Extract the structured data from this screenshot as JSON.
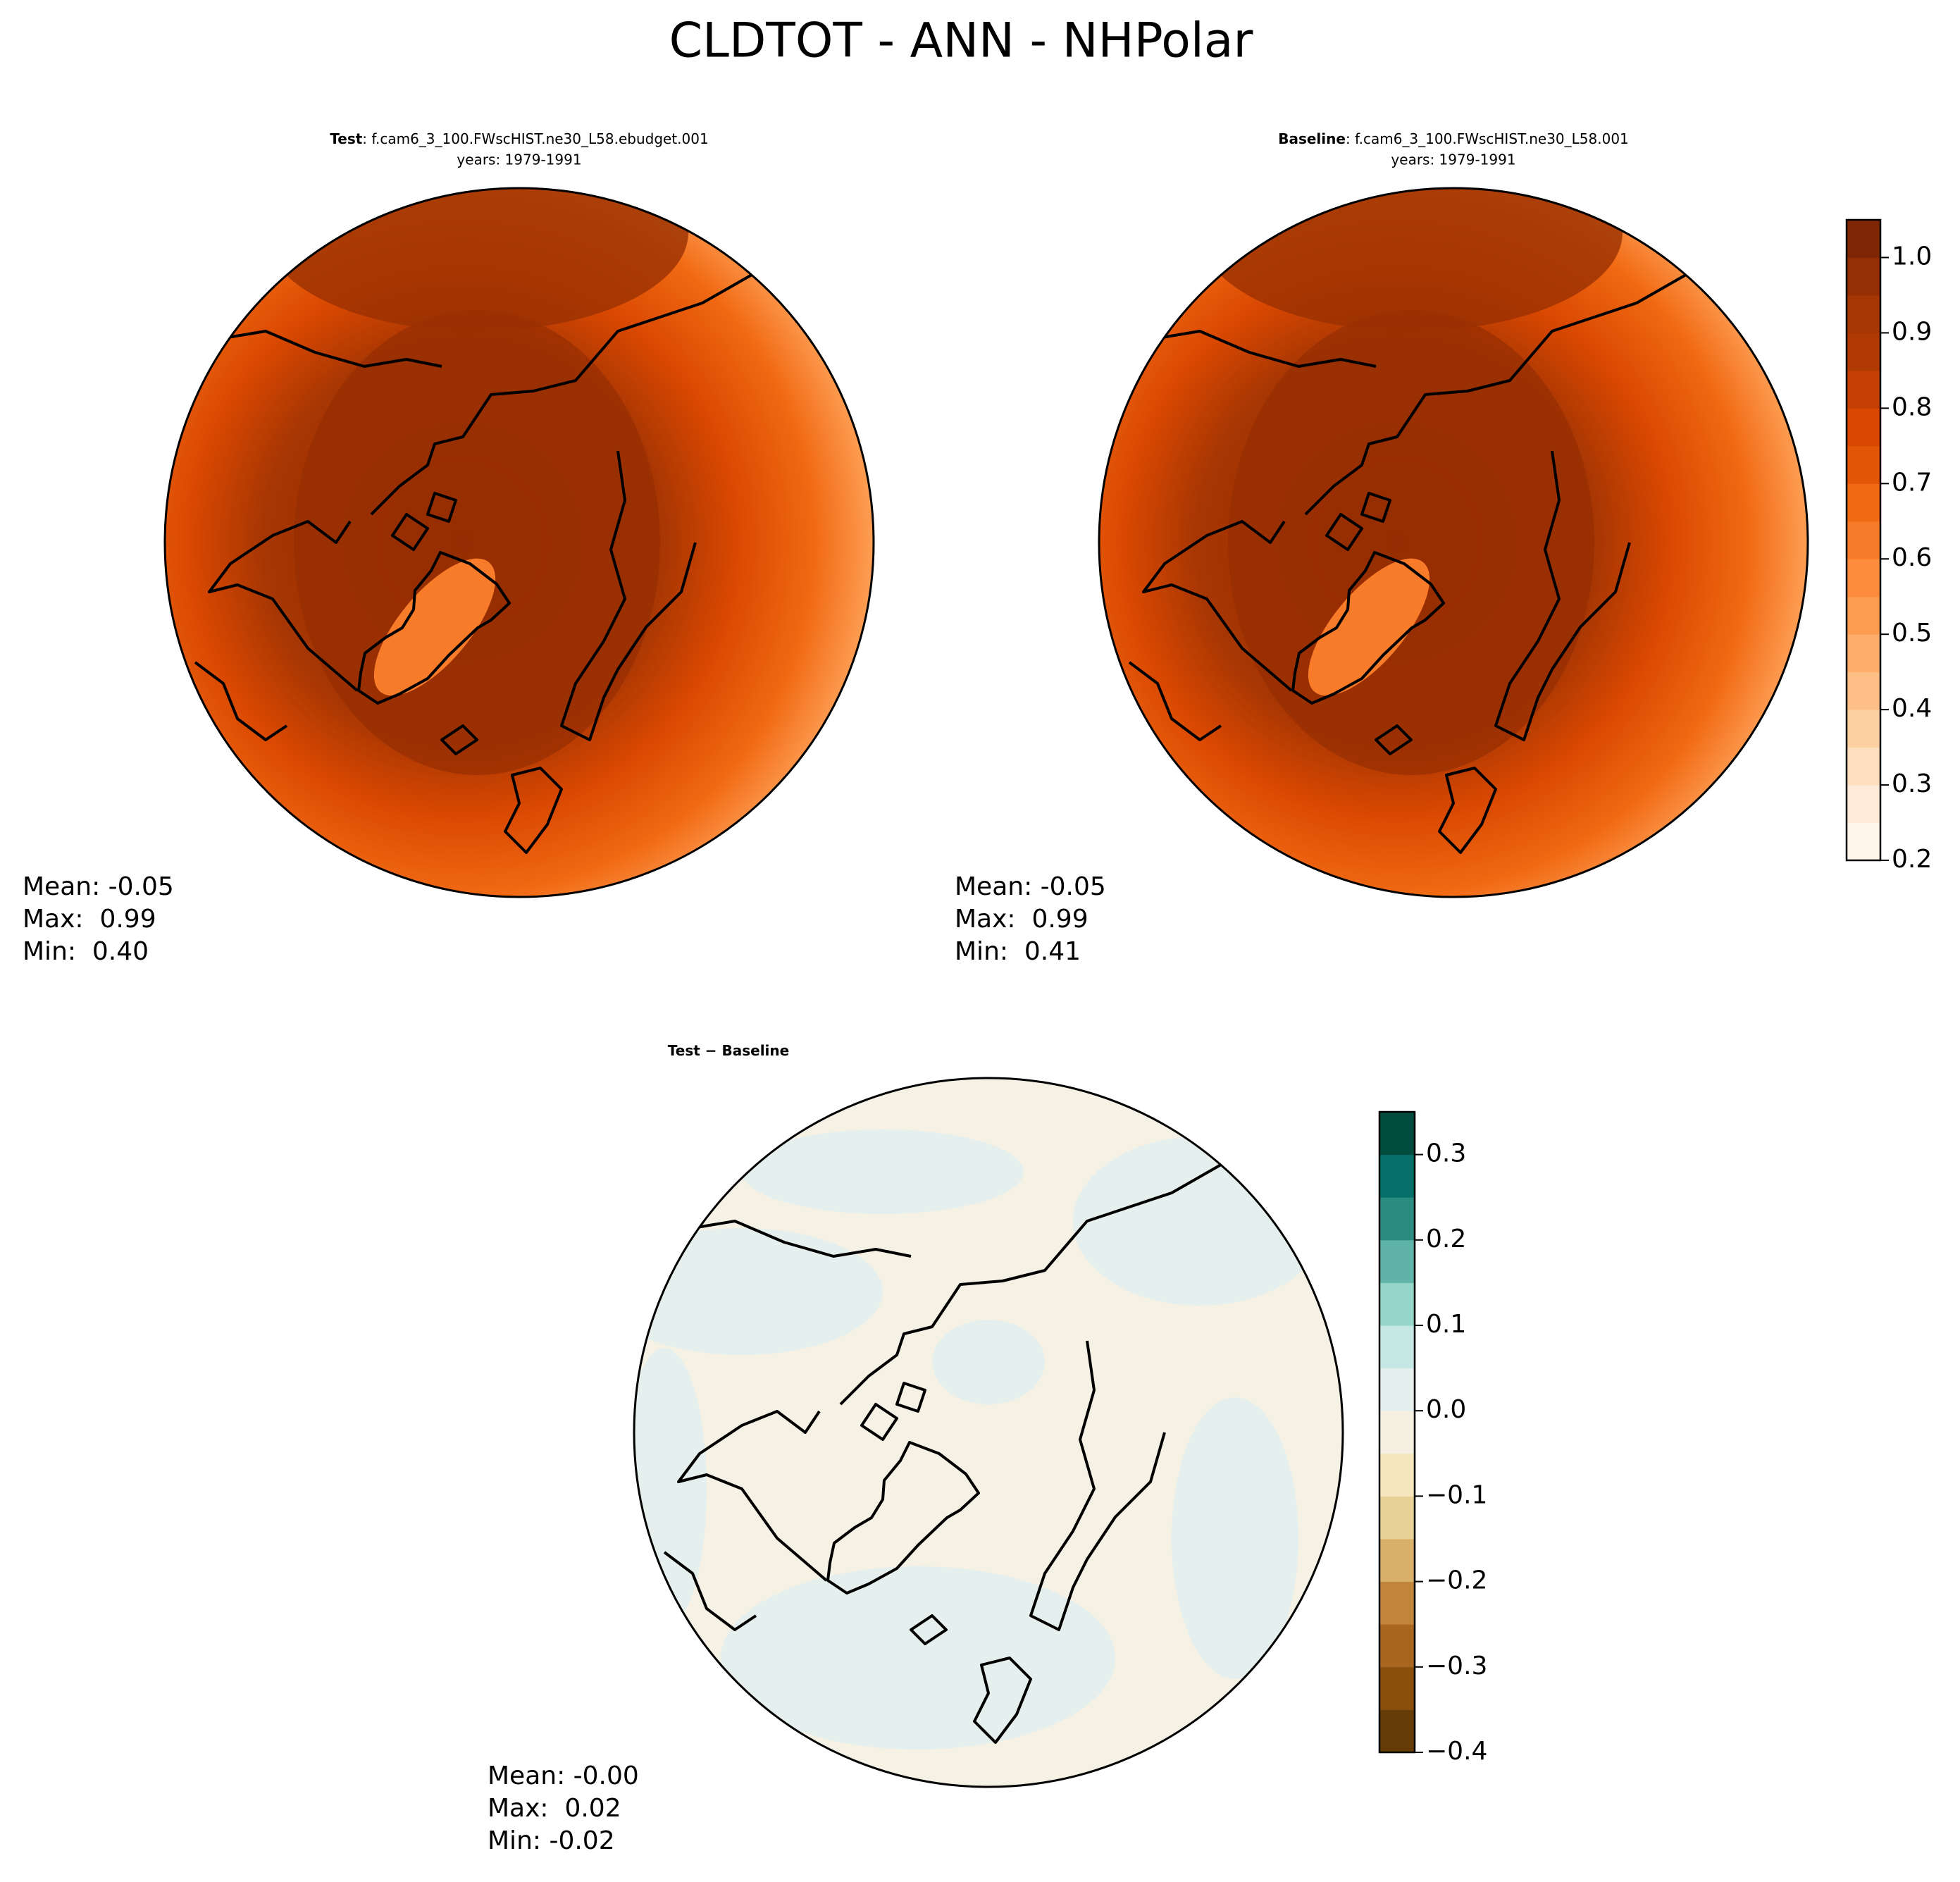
{
  "title": "CLDTOT - ANN - NHPolar",
  "chart_data": [
    {
      "type": "map",
      "title_bold": "Test",
      "title_rest": ": f.cam6_3_100.FWscHIST.ne30_L58.ebudget.001",
      "subtitle": "years: 1979-1991",
      "stats": [
        "Mean: -0.05",
        "Max:  0.99",
        "Min:  0.40"
      ]
    },
    {
      "type": "map",
      "title_bold": "Baseline",
      "title_rest": ": f.cam6_3_100.FWscHIST.ne30_L58.001",
      "subtitle": "years: 1979-1991",
      "stats": [
        "Mean: -0.05",
        "Max:  0.99",
        "Min:  0.41"
      ],
      "ylim": [
        0.2,
        1.05
      ],
      "yticks": [
        0.2,
        0.3,
        0.4,
        0.5,
        0.6,
        0.7,
        0.8,
        0.9,
        {
          "value": 1,
          "label": "1.0"
        }
      ],
      "colors": [
        "#fff5eb",
        "#feead6",
        "#fedebf",
        "#fdd0a2",
        "#fdbf86",
        "#fdae6b",
        "#fd9c51",
        "#fd8d3c",
        "#f77b28",
        "#f16913",
        "#e35608",
        "#d94801",
        "#c44103",
        "#b13a03",
        "#a63603",
        "#962e03",
        "#7f2704"
      ]
    },
    {
      "type": "map",
      "title_bold": "Test − Baseline",
      "stats": [
        "Mean: -0.00",
        "Max:  0.02",
        "Min: -0.02"
      ],
      "ylim": [
        -0.4,
        0.35
      ],
      "yticks": [
        {
          "value": -0.4,
          "label": "−0.4"
        },
        {
          "value": -0.3,
          "label": "−0.3"
        },
        {
          "value": -0.2,
          "label": "−0.2"
        },
        {
          "value": -0.1,
          "label": "−0.1"
        },
        {
          "value": 0,
          "label": "0.0"
        },
        0.1,
        0.2,
        0.3
      ],
      "colors": [
        "#663c06",
        "#8a4f0c",
        "#a8661e",
        "#c08538",
        "#d8b06a",
        "#e8d194",
        "#f6e6bd",
        "#f5f0e2",
        "#e5f0ee",
        "#c5e8e4",
        "#94d6ca",
        "#5fb3a7",
        "#2a8c81",
        "#05706a",
        "#014c3f"
      ]
    }
  ]
}
